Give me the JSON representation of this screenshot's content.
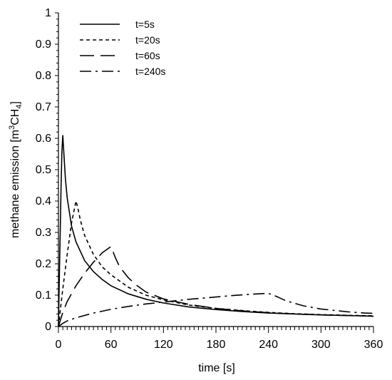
{
  "chart_data": {
    "type": "line",
    "xlabel": "time [s]",
    "ylabel_prefix": "methane emission [m",
    "ylabel_sup": "3",
    "ylabel_mid": "CH",
    "ylabel_sub": "4",
    "ylabel_suffix": "]",
    "xlim": [
      0,
      360
    ],
    "ylim": [
      0,
      1
    ],
    "x_ticks": [
      0,
      60,
      120,
      180,
      240,
      300,
      360
    ],
    "x_tick_labels": [
      "0",
      "60",
      "120",
      "180",
      "240",
      "300",
      "360"
    ],
    "y_ticks": [
      0,
      0.1,
      0.2,
      0.3,
      0.4,
      0.5,
      0.6,
      0.7,
      0.8,
      0.9,
      1
    ],
    "y_tick_labels": [
      "0",
      "0.1",
      "0.2",
      "0.3",
      "0.4",
      "0.5",
      "0.6",
      "0.7",
      "0.8",
      "0.9",
      "1"
    ],
    "grid": false,
    "legend_position": "top-left",
    "series": [
      {
        "name": "t=5s",
        "line_style": "solid",
        "points": [
          [
            0,
            0
          ],
          [
            1,
            0.15
          ],
          [
            2,
            0.3
          ],
          [
            3,
            0.45
          ],
          [
            4,
            0.56
          ],
          [
            5,
            0.61
          ],
          [
            6,
            0.56
          ],
          [
            8,
            0.47
          ],
          [
            10,
            0.41
          ],
          [
            15,
            0.32
          ],
          [
            20,
            0.27
          ],
          [
            30,
            0.21
          ],
          [
            40,
            0.175
          ],
          [
            50,
            0.15
          ],
          [
            60,
            0.13
          ],
          [
            80,
            0.104
          ],
          [
            100,
            0.087
          ],
          [
            120,
            0.075
          ],
          [
            150,
            0.062
          ],
          [
            180,
            0.054
          ],
          [
            210,
            0.048
          ],
          [
            240,
            0.043
          ],
          [
            270,
            0.04
          ],
          [
            300,
            0.037
          ],
          [
            330,
            0.035
          ],
          [
            360,
            0.033
          ]
        ]
      },
      {
        "name": "t=20s",
        "line_style": "short-dash",
        "points": [
          [
            0,
            0
          ],
          [
            2,
            0.05
          ],
          [
            5,
            0.12
          ],
          [
            10,
            0.23
          ],
          [
            15,
            0.33
          ],
          [
            20,
            0.4
          ],
          [
            22,
            0.38
          ],
          [
            25,
            0.34
          ],
          [
            30,
            0.29
          ],
          [
            40,
            0.23
          ],
          [
            50,
            0.19
          ],
          [
            60,
            0.165
          ],
          [
            80,
            0.125
          ],
          [
            100,
            0.1
          ],
          [
            120,
            0.085
          ],
          [
            150,
            0.068
          ],
          [
            180,
            0.058
          ],
          [
            210,
            0.051
          ],
          [
            240,
            0.045
          ],
          [
            270,
            0.041
          ],
          [
            300,
            0.038
          ],
          [
            330,
            0.036
          ],
          [
            360,
            0.034
          ]
        ]
      },
      {
        "name": "t=60s",
        "line_style": "long-dash",
        "points": [
          [
            0,
            0
          ],
          [
            5,
            0.045
          ],
          [
            10,
            0.08
          ],
          [
            20,
            0.13
          ],
          [
            30,
            0.17
          ],
          [
            40,
            0.205
          ],
          [
            50,
            0.235
          ],
          [
            60,
            0.255
          ],
          [
            65,
            0.22
          ],
          [
            70,
            0.19
          ],
          [
            80,
            0.155
          ],
          [
            90,
            0.13
          ],
          [
            100,
            0.11
          ],
          [
            120,
            0.088
          ],
          [
            150,
            0.07
          ],
          [
            180,
            0.058
          ],
          [
            210,
            0.05
          ],
          [
            240,
            0.044
          ],
          [
            270,
            0.04
          ],
          [
            300,
            0.037
          ],
          [
            330,
            0.035
          ],
          [
            360,
            0.033
          ]
        ]
      },
      {
        "name": "t=240s",
        "line_style": "dash-dot",
        "points": [
          [
            0,
            0
          ],
          [
            5,
            0.01
          ],
          [
            10,
            0.018
          ],
          [
            20,
            0.028
          ],
          [
            40,
            0.043
          ],
          [
            60,
            0.055
          ],
          [
            80,
            0.064
          ],
          [
            100,
            0.072
          ],
          [
            120,
            0.078
          ],
          [
            150,
            0.087
          ],
          [
            180,
            0.094
          ],
          [
            200,
            0.099
          ],
          [
            220,
            0.103
          ],
          [
            240,
            0.106
          ],
          [
            250,
            0.095
          ],
          [
            260,
            0.082
          ],
          [
            280,
            0.066
          ],
          [
            300,
            0.056
          ],
          [
            330,
            0.047
          ],
          [
            350,
            0.043
          ],
          [
            360,
            0.042
          ]
        ]
      }
    ]
  }
}
